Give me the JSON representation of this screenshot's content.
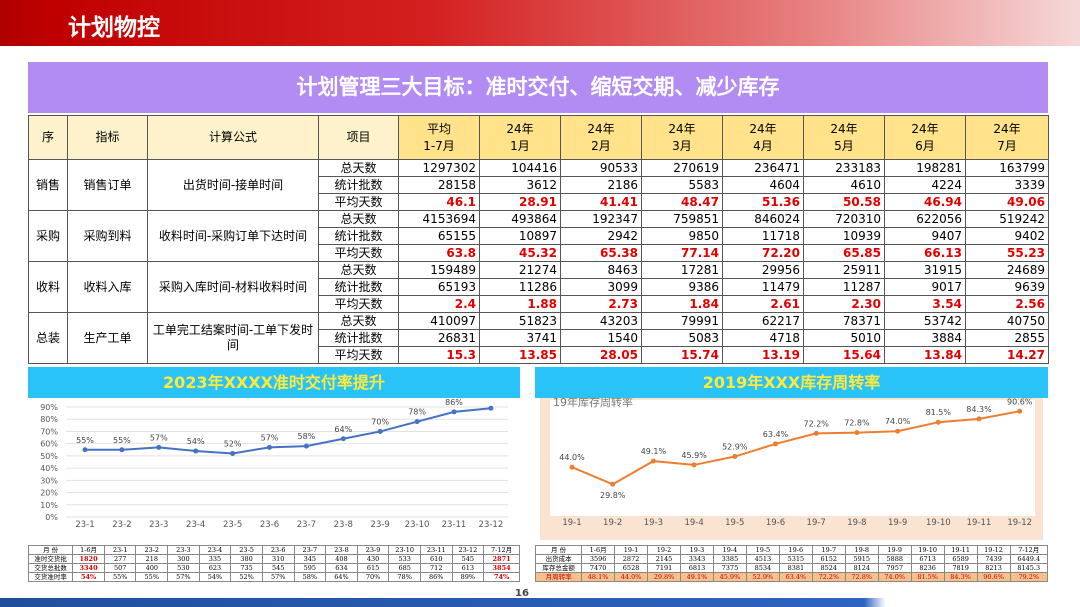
{
  "header": {
    "title": "计划物控"
  },
  "banner": "计划管理三大目标：准时交付、缩短交期、减少库存",
  "table": {
    "header": [
      "序",
      "指标",
      "计算公式",
      "项目",
      "平均\n1-7月",
      "24年\n1月",
      "24年\n2月",
      "24年\n3月",
      "24年\n4月",
      "24年\n5月",
      "24年\n6月",
      "24年\n7月"
    ],
    "groups": [
      {
        "seq": "销售",
        "indicator": "销售订单",
        "formula": "出货时间-接单时间",
        "rows": [
          {
            "item": "总天数",
            "values": [
              "1297302",
              "104416",
              "90533",
              "270619",
              "236471",
              "233183",
              "198281",
              "163799"
            ]
          },
          {
            "item": "统计批数",
            "values": [
              "28158",
              "3612",
              "2186",
              "5583",
              "4604",
              "4610",
              "4224",
              "3339"
            ]
          },
          {
            "item": "平均天数",
            "values": [
              "46.1",
              "28.91",
              "41.41",
              "48.47",
              "51.36",
              "50.58",
              "46.94",
              "49.06"
            ]
          }
        ]
      },
      {
        "seq": "采购",
        "indicator": "采购到料",
        "formula": "收料时间-采购订单下达时间",
        "rows": [
          {
            "item": "总天数",
            "values": [
              "4153694",
              "493864",
              "192347",
              "759851",
              "846024",
              "720310",
              "622056",
              "519242"
            ]
          },
          {
            "item": "统计批数",
            "values": [
              "65155",
              "10897",
              "2942",
              "9850",
              "11718",
              "10939",
              "9407",
              "9402"
            ]
          },
          {
            "item": "平均天数",
            "values": [
              "63.8",
              "45.32",
              "65.38",
              "77.14",
              "72.20",
              "65.85",
              "66.13",
              "55.23"
            ]
          }
        ]
      },
      {
        "seq": "收料",
        "indicator": "收料入库",
        "formula": "采购入库时间-材料收料时间",
        "rows": [
          {
            "item": "总天数",
            "values": [
              "159489",
              "21274",
              "8463",
              "17281",
              "29956",
              "25911",
              "31915",
              "24689"
            ]
          },
          {
            "item": "统计批数",
            "values": [
              "65193",
              "11286",
              "3099",
              "9386",
              "11479",
              "11287",
              "9017",
              "9639"
            ]
          },
          {
            "item": "平均天数",
            "values": [
              "2.4",
              "1.88",
              "2.73",
              "1.84",
              "2.61",
              "2.30",
              "3.54",
              "2.56"
            ]
          }
        ]
      },
      {
        "seq": "总装",
        "indicator": "生产工单",
        "formula": "工单完工结案时间-工单下发时间",
        "rows": [
          {
            "item": "总天数",
            "values": [
              "410097",
              "51823",
              "43203",
              "79991",
              "62217",
              "78371",
              "53742",
              "40750"
            ]
          },
          {
            "item": "统计批数",
            "values": [
              "26831",
              "3741",
              "1540",
              "5083",
              "4718",
              "5010",
              "3884",
              "2855"
            ]
          },
          {
            "item": "平均天数",
            "values": [
              "15.3",
              "13.85",
              "28.05",
              "15.74",
              "13.19",
              "15.64",
              "13.84",
              "14.27"
            ]
          }
        ]
      }
    ]
  },
  "chart_data": [
    {
      "type": "line",
      "title": "2023年XXXX准时交付率提升",
      "categories": [
        "23-1",
        "23-2",
        "23-3",
        "23-4",
        "23-5",
        "23-6",
        "23-7",
        "23-8",
        "23-9",
        "23-10",
        "23-11",
        "23-12"
      ],
      "values": [
        55,
        55,
        57,
        54,
        52,
        57,
        58,
        64,
        70,
        78,
        86,
        89
      ],
      "value_labels": [
        "55%",
        "55%",
        "57%",
        "54%",
        "52%",
        "57%",
        "58%",
        "64%",
        "70%",
        "78%",
        "86%",
        null
      ],
      "color": "#4472c4",
      "ylim": [
        0,
        90
      ],
      "yticks": [
        {
          "value": 0,
          "label": "0%"
        },
        {
          "value": 10,
          "label": "10%"
        },
        {
          "value": 20,
          "label": "20%"
        },
        {
          "value": 30,
          "label": "30%"
        },
        {
          "value": 40,
          "label": "40%"
        },
        {
          "value": 50,
          "label": "50%"
        },
        {
          "value": 60,
          "label": "60%"
        },
        {
          "value": 70,
          "label": "70%"
        },
        {
          "value": 80,
          "label": "80%"
        },
        {
          "value": 90,
          "label": "90%"
        }
      ],
      "grid": true
    },
    {
      "type": "line",
      "title": "2019年XXX库存周转率",
      "subtitle": "19年库存周转率",
      "categories": [
        "19-1",
        "19-2",
        "19-3",
        "19-4",
        "19-5",
        "19-6",
        "19-7",
        "19-8",
        "19-9",
        "19-10",
        "19-11",
        "19-12"
      ],
      "values": [
        44.0,
        29.8,
        49.1,
        45.9,
        52.9,
        63.4,
        72.2,
        72.8,
        74.0,
        81.5,
        84.3,
        90.6
      ],
      "value_labels": [
        "44.0%",
        "29.8%",
        "49.1%",
        "45.9%",
        "52.9%",
        "63.4%",
        "72.2%",
        "72.8%",
        "74.0%",
        "81.5%",
        "84.3%",
        "90.6%"
      ],
      "color": "#ed7d31",
      "ylim": [
        0,
        100
      ]
    }
  ],
  "left_table": [
    [
      "月 份",
      "1-6月",
      "23-1",
      "23-2",
      "23-3",
      "23-4",
      "23-5",
      "23-6",
      "23-7",
      "23-8",
      "23-9",
      "23-10",
      "23-11",
      "23-12",
      "7-12月"
    ],
    [
      "准时交货批",
      "1820",
      "277",
      "218",
      "300",
      "335",
      "380",
      "310",
      "345",
      "408",
      "430",
      "533",
      "610",
      "545",
      "2871"
    ],
    [
      "交货总批数",
      "3340",
      "507",
      "400",
      "530",
      "623",
      "735",
      "545",
      "595",
      "634",
      "615",
      "685",
      "712",
      "613",
      "3854"
    ],
    [
      "交货准时率",
      "54%",
      "55%",
      "55%",
      "57%",
      "54%",
      "52%",
      "57%",
      "58%",
      "64%",
      "70%",
      "78%",
      "86%",
      "89%",
      "74%"
    ]
  ],
  "right_table": [
    [
      "月 份",
      "1-6月",
      "19-1",
      "19-2",
      "19-3",
      "19-4",
      "19-5",
      "19-6",
      "19-7",
      "19-8",
      "19-9",
      "19-10",
      "19-11",
      "19-12",
      "7-12月"
    ],
    [
      "出货成本",
      "3596",
      "2872",
      "2145",
      "3343",
      "3385",
      "4513",
      "5315",
      "6152",
      "5915",
      "5888",
      "6713",
      "6589",
      "7439",
      "6449.4"
    ],
    [
      "库存总金额",
      "7470",
      "6528",
      "7191",
      "6813",
      "7375",
      "8534",
      "8381",
      "8524",
      "8124",
      "7957",
      "8236",
      "7819",
      "8213",
      "8145.3"
    ],
    [
      "月周转率",
      "48.1%",
      "44.0%",
      "29.8%",
      "49.1%",
      "45.9%",
      "52.9%",
      "63.4%",
      "72.2%",
      "72.8%",
      "74.0%",
      "81.5%",
      "84.3%",
      "90.6%",
      "79.2%"
    ]
  ],
  "page_number": "16"
}
